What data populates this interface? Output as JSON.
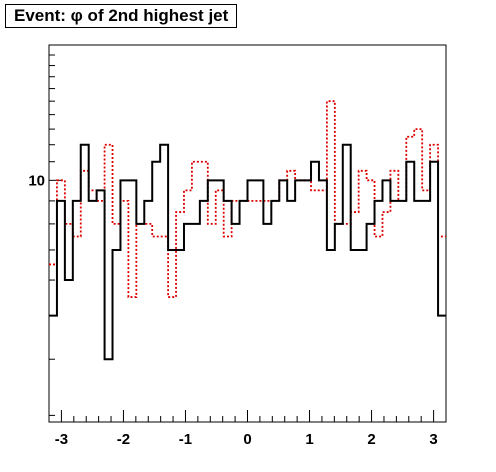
{
  "chart_data": {
    "type": "line",
    "title": "Event: φ of 2nd highest jet",
    "xlabel": "",
    "ylabel": "",
    "xlim": [
      -3.2,
      3.2
    ],
    "ylim": [
      2.9,
      20
    ],
    "log_y": true,
    "grid": false,
    "legend": "none",
    "xticks": [
      -3,
      -2,
      -1,
      0,
      1,
      2,
      3
    ],
    "xtick_labels": [
      "-3",
      "-2",
      "-1",
      "0",
      "1",
      "2",
      "3"
    ],
    "yticks_labeled": [
      10
    ],
    "ytick_labels": [
      "10"
    ],
    "bins": 50,
    "series": [
      {
        "style": "solid",
        "color": "#000000",
        "values": [
          5,
          9,
          6,
          9,
          12,
          9,
          9.5,
          4,
          7,
          10,
          10,
          8,
          9,
          11,
          12,
          7,
          7,
          8,
          8,
          9,
          10,
          10,
          9,
          8,
          9,
          10,
          10,
          8,
          9,
          10,
          9,
          10,
          10,
          11,
          10,
          7,
          8,
          12,
          7,
          7,
          8,
          9,
          10,
          9,
          9,
          11,
          9,
          9,
          11,
          5
        ]
      },
      {
        "style": "dotted",
        "color": "#dd0000",
        "values": [
          6.5,
          10,
          8,
          7.5,
          10.5,
          9.5,
          9,
          12,
          8,
          9,
          5.5,
          8,
          8,
          7.5,
          7.5,
          5.5,
          8.5,
          9.5,
          11,
          11,
          8,
          9.5,
          7.5,
          9,
          9,
          9,
          9,
          9,
          9,
          10,
          10.5,
          10,
          10,
          9.5,
          9.5,
          15,
          8,
          8,
          8.5,
          10.5,
          10,
          7.5,
          8.5,
          10.5,
          9,
          12.5,
          13,
          9.5,
          12,
          7.5
        ]
      }
    ]
  }
}
